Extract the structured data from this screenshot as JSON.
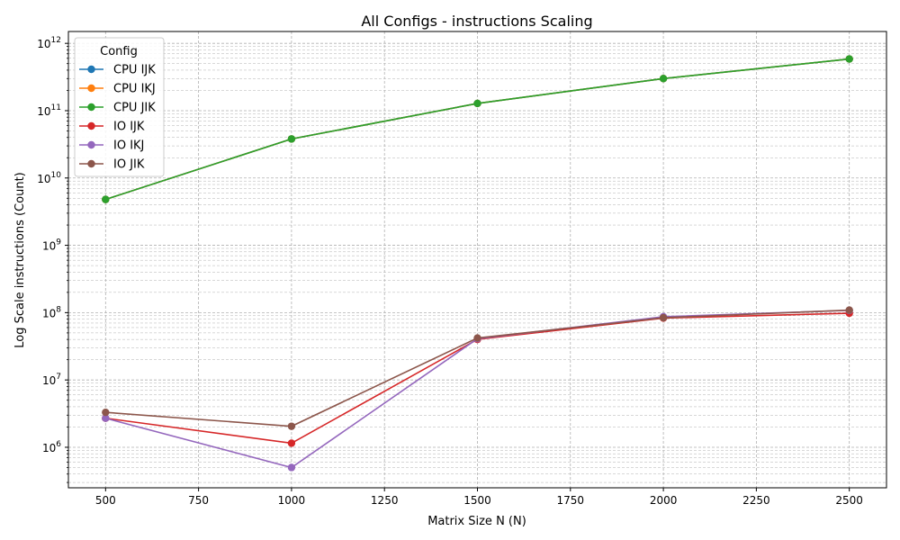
{
  "chart_data": {
    "type": "line",
    "title": "All Configs - instructions Scaling",
    "xlabel": "Matrix Size N (N)",
    "ylabel": "Log Scale instructions (Count)",
    "x_scale": "linear",
    "y_scale": "log",
    "xlim": [
      400,
      2600
    ],
    "ylim": [
      250000,
      1500000000000
    ],
    "x_ticks": [
      500,
      750,
      1000,
      1250,
      1500,
      1750,
      2000,
      2250,
      2500
    ],
    "x_tick_labels": [
      "500",
      "750",
      "1000",
      "1250",
      "1500",
      "1750",
      "2000",
      "2250",
      "2500"
    ],
    "y_ticks": [
      1000000,
      10000000,
      100000000,
      1000000000,
      10000000000,
      100000000000,
      1000000000000
    ],
    "y_tick_labels": [
      "10^6",
      "10^7",
      "10^8",
      "10^9",
      "10^10",
      "10^11",
      "10^12"
    ],
    "grid": true,
    "legend_title": "Config",
    "legend_position": "top-left",
    "x": [
      500,
      1000,
      1500,
      2000,
      2500
    ],
    "series": [
      {
        "name": "CPU IJK",
        "color": "#1f77b4",
        "values": [
          4800000000,
          38000000000,
          128000000000,
          300000000000,
          585000000000
        ]
      },
      {
        "name": "CPU IKJ",
        "color": "#ff7f0e",
        "values": [
          4800000000,
          38000000000,
          128000000000,
          300000000000,
          585000000000
        ]
      },
      {
        "name": "CPU JIK",
        "color": "#2ca02c",
        "values": [
          4800000000,
          38000000000,
          128000000000,
          300000000000,
          585000000000
        ]
      },
      {
        "name": "IO IJK",
        "color": "#d62728",
        "values": [
          2700000,
          1150000,
          40000000,
          83000000,
          98000000
        ]
      },
      {
        "name": "IO IKJ",
        "color": "#9467bd",
        "values": [
          2700000,
          500000,
          41000000,
          87000000,
          108000000
        ]
      },
      {
        "name": "IO JIK",
        "color": "#8c564b",
        "values": [
          3300000,
          2050000,
          42000000,
          84000000,
          109000000
        ]
      }
    ]
  }
}
